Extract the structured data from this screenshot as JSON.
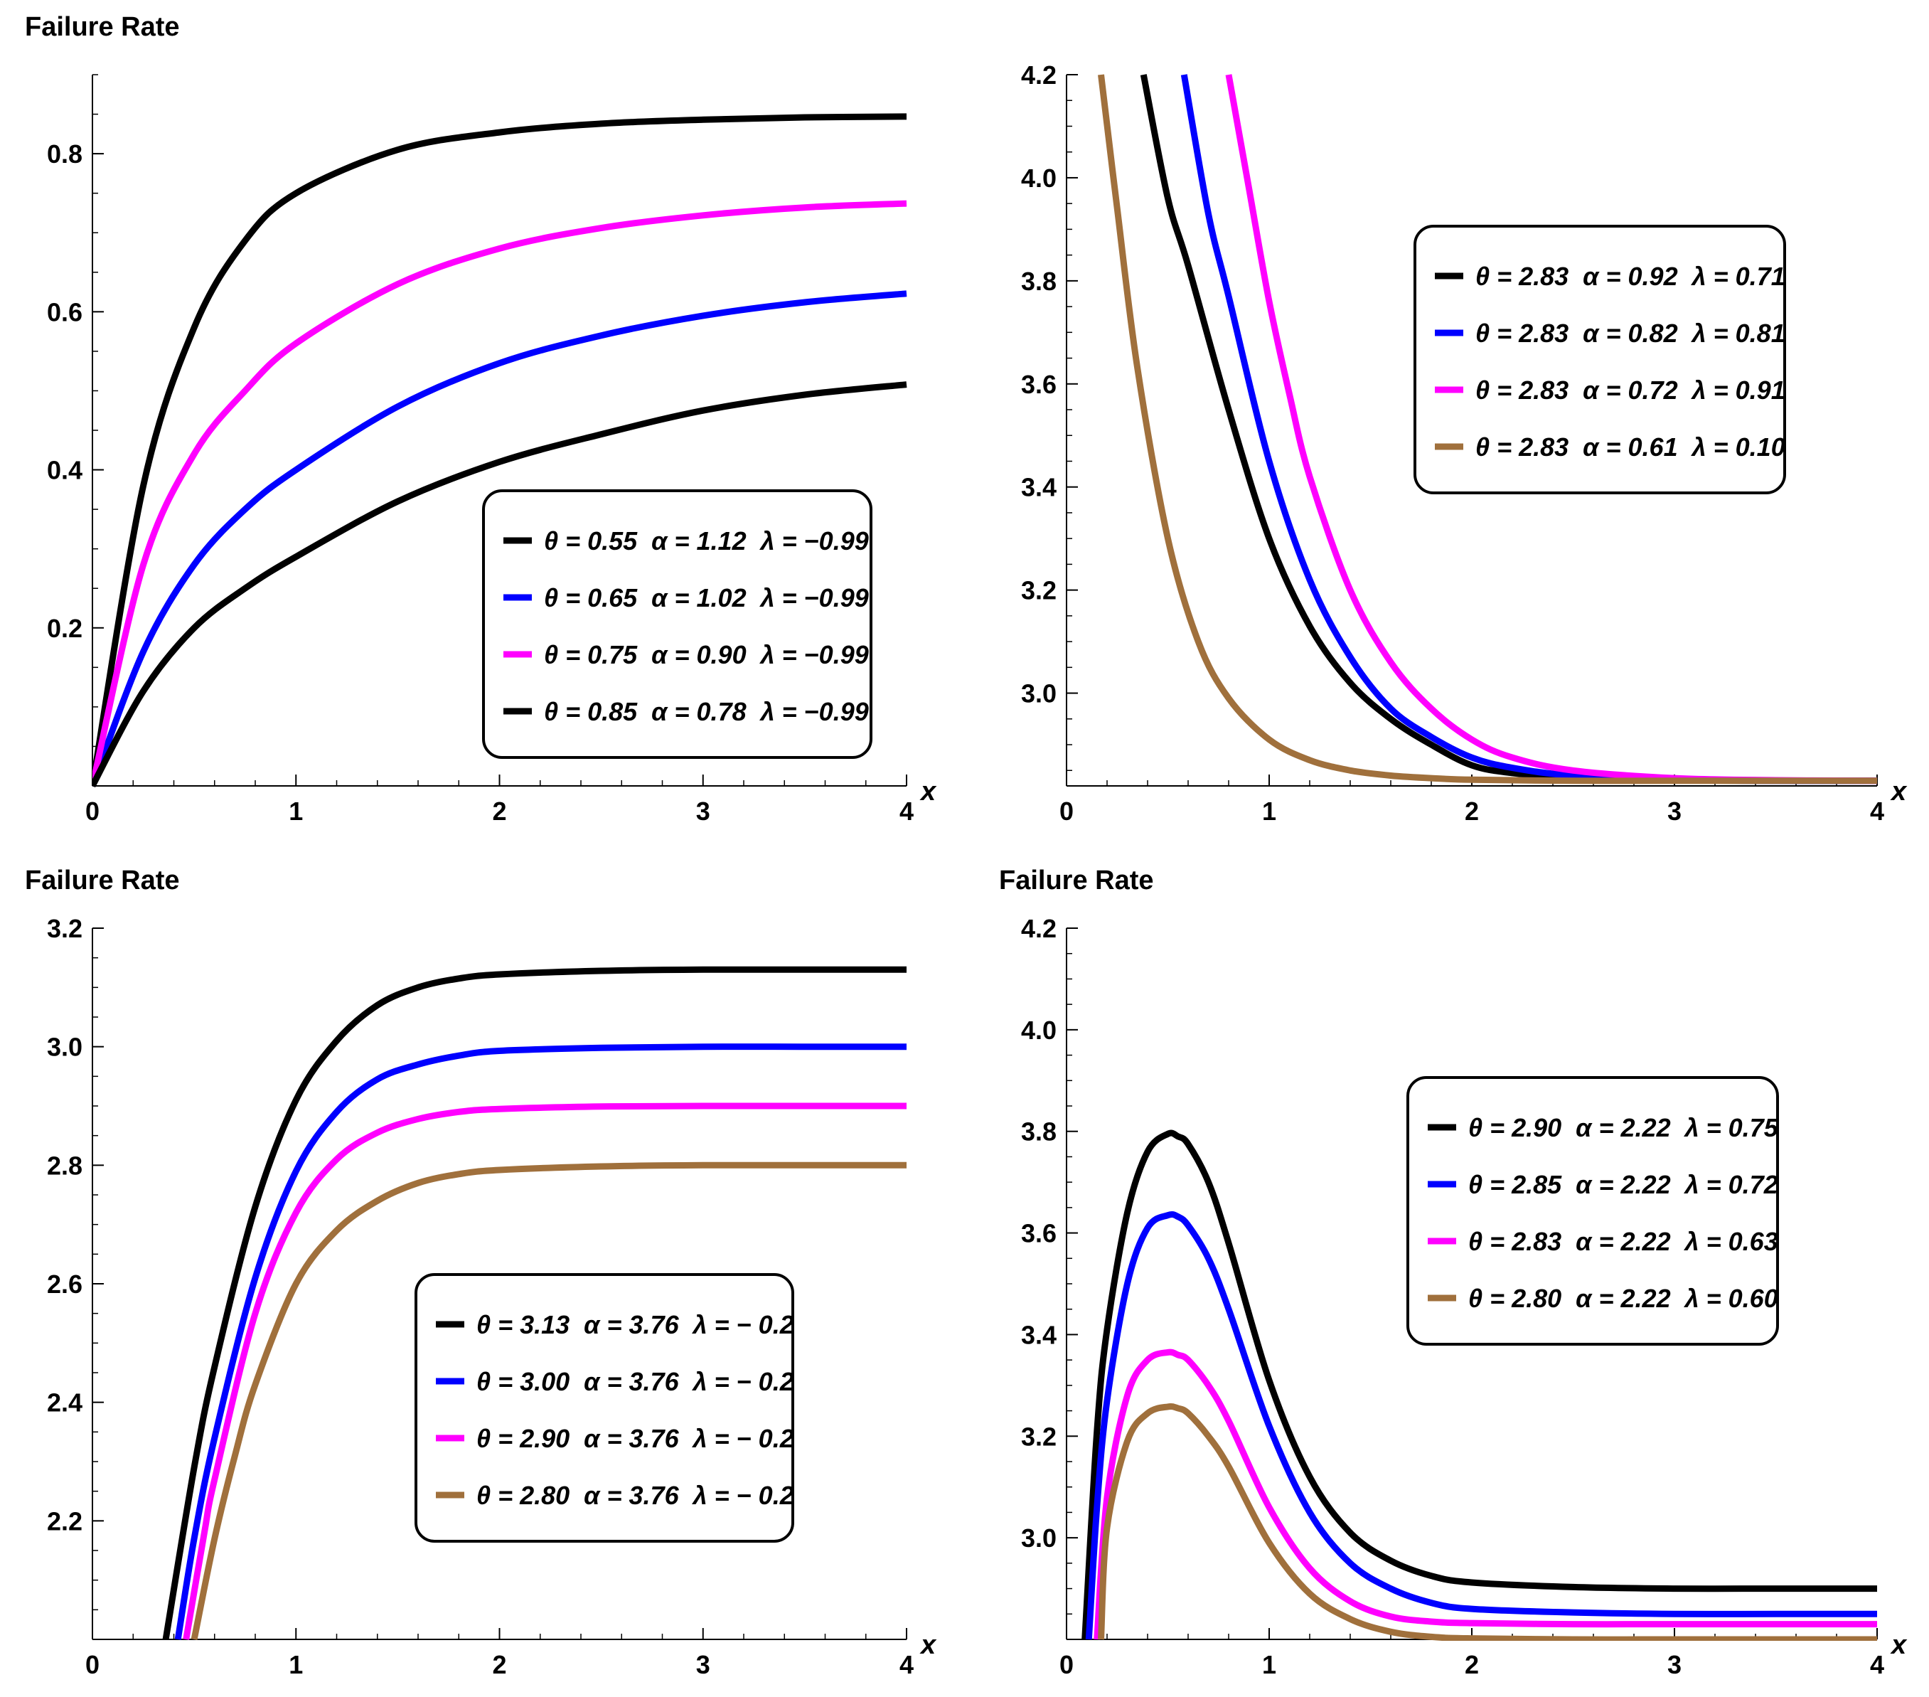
{
  "colors": {
    "black": "#000000",
    "blue": "#0000ff",
    "magenta": "#ff00ff",
    "brown": "#a0703c"
  },
  "chart_data": [
    {
      "type": "line",
      "ylabel": "Failure Rate",
      "xlabel": "x",
      "xlim": [
        0,
        4
      ],
      "ylim": [
        0,
        0.9
      ],
      "xticks": [
        0,
        1,
        2,
        3,
        4
      ],
      "xtick_labels": [
        "0",
        "1",
        "2",
        "3",
        "4"
      ],
      "yticks": [
        0.2,
        0.4,
        0.6,
        0.8
      ],
      "ytick_labels": [
        "0.2",
        "0.4",
        "0.6",
        "0.8"
      ],
      "series": [
        {
          "name": "θ = 0.55  α = 1.12  λ = −0.99",
          "color": "#000000",
          "x": [
            0,
            0.25,
            0.5,
            0.75,
            1,
            1.5,
            2,
            2.5,
            3,
            3.5,
            4
          ],
          "values": [
            0,
            0.38,
            0.58,
            0.69,
            0.75,
            0.805,
            0.827,
            0.838,
            0.843,
            0.846,
            0.847
          ]
        },
        {
          "name": "θ = 0.65  α = 1.02  λ = −0.99",
          "color": "#0000ff",
          "x": [
            0,
            0.25,
            0.5,
            0.75,
            1,
            1.5,
            2,
            2.5,
            3,
            3.5,
            4
          ],
          "values": [
            0,
            0.17,
            0.28,
            0.35,
            0.4,
            0.48,
            0.535,
            0.57,
            0.595,
            0.612,
            0.623
          ]
        },
        {
          "name": "θ = 0.75  α = 0.90  λ = −0.99",
          "color": "#ff00ff",
          "x": [
            0,
            0.25,
            0.5,
            0.75,
            1,
            1.5,
            2,
            2.5,
            3,
            3.5,
            4
          ],
          "values": [
            0,
            0.28,
            0.42,
            0.5,
            0.56,
            0.635,
            0.68,
            0.706,
            0.722,
            0.732,
            0.737
          ]
        },
        {
          "name": "θ = 0.85  α = 0.78  λ = −0.99",
          "color": "#000000",
          "x": [
            0,
            0.25,
            0.5,
            0.75,
            1,
            1.5,
            2,
            2.5,
            3,
            3.5,
            4
          ],
          "values": [
            0,
            0.12,
            0.2,
            0.25,
            0.29,
            0.36,
            0.41,
            0.445,
            0.475,
            0.495,
            0.508
          ]
        }
      ]
    },
    {
      "type": "line",
      "ylabel": "",
      "xlabel": "x",
      "xlim": [
        0,
        4
      ],
      "ylim": [
        2.82,
        4.2
      ],
      "xticks": [
        0,
        1,
        2,
        3,
        4
      ],
      "xtick_labels": [
        "0",
        "1",
        "2",
        "3",
        "4"
      ],
      "yticks": [
        3.0,
        3.2,
        3.4,
        3.6,
        3.8,
        4.0,
        4.2
      ],
      "ytick_labels": [
        "3.0",
        "3.2",
        "3.4",
        "3.6",
        "3.8",
        "4.0",
        "4.2"
      ],
      "series": [
        {
          "name": "θ = 2.83  α = 0.92  λ = 0.71",
          "color": "#000000",
          "x": [
            0.38,
            0.5,
            0.6,
            0.8,
            1,
            1.2,
            1.4,
            1.6,
            1.8,
            2,
            2.2,
            2.5,
            3,
            3.5,
            4
          ],
          "values": [
            4.2,
            3.96,
            3.83,
            3.55,
            3.3,
            3.13,
            3.02,
            2.95,
            2.9,
            2.86,
            2.845,
            2.836,
            2.831,
            2.83,
            2.83
          ]
        },
        {
          "name": "θ = 2.83  α = 0.82  λ = 0.81",
          "color": "#0000ff",
          "x": [
            0.58,
            0.7,
            0.8,
            1,
            1.2,
            1.4,
            1.6,
            1.8,
            2,
            2.2,
            2.5,
            3,
            3.5,
            4
          ],
          "values": [
            4.2,
            3.93,
            3.77,
            3.45,
            3.22,
            3.07,
            2.97,
            2.915,
            2.875,
            2.855,
            2.84,
            2.832,
            2.83,
            2.83
          ]
        },
        {
          "name": "θ = 2.83  α = 0.72  λ = 0.91",
          "color": "#ff00ff",
          "x": [
            0.8,
            0.9,
            1,
            1.1,
            1.2,
            1.4,
            1.6,
            1.8,
            2,
            2.2,
            2.5,
            3,
            3.5,
            4
          ],
          "values": [
            4.2,
            3.98,
            3.76,
            3.58,
            3.42,
            3.2,
            3.06,
            2.97,
            2.91,
            2.875,
            2.85,
            2.835,
            2.831,
            2.83
          ]
        },
        {
          "name": "θ = 2.83  α = 0.61  λ = 0.10",
          "color": "#a0703c",
          "x": [
            0.17,
            0.25,
            0.35,
            0.5,
            0.65,
            0.8,
            1,
            1.2,
            1.4,
            1.6,
            1.8,
            2,
            2.5,
            3,
            4
          ],
          "values": [
            4.2,
            3.94,
            3.63,
            3.3,
            3.1,
            2.99,
            2.91,
            2.87,
            2.85,
            2.84,
            2.835,
            2.832,
            2.83,
            2.83,
            2.83
          ]
        }
      ]
    },
    {
      "type": "line",
      "ylabel": "Failure Rate",
      "xlabel": "x",
      "xlim": [
        0,
        4
      ],
      "ylim": [
        2.0,
        3.2
      ],
      "xticks": [
        0,
        1,
        2,
        3,
        4
      ],
      "xtick_labels": [
        "0",
        "1",
        "2",
        "3",
        "4"
      ],
      "yticks": [
        2.2,
        2.4,
        2.6,
        2.8,
        3.0,
        3.2
      ],
      "ytick_labels": [
        "2.2",
        "2.4",
        "2.6",
        "2.8",
        "3.0",
        "3.2"
      ],
      "series": [
        {
          "name": "θ = 3.13  α = 3.76  λ = − 0.2",
          "color": "#000000",
          "x": [
            0.36,
            0.5,
            0.6,
            0.8,
            1,
            1.2,
            1.4,
            1.6,
            1.8,
            2,
            2.5,
            3,
            3.5,
            4
          ],
          "values": [
            2.0,
            2.29,
            2.46,
            2.73,
            2.91,
            3.01,
            3.07,
            3.1,
            3.115,
            3.122,
            3.128,
            3.13,
            3.13,
            3.13
          ]
        },
        {
          "name": "θ = 3.00  α = 3.76  λ = − 0.2",
          "color": "#0000ff",
          "x": [
            0.42,
            0.5,
            0.6,
            0.8,
            1,
            1.2,
            1.4,
            1.6,
            1.8,
            2,
            2.5,
            3,
            3.5,
            4
          ],
          "values": [
            2.0,
            2.17,
            2.34,
            2.61,
            2.79,
            2.89,
            2.945,
            2.97,
            2.985,
            2.993,
            2.998,
            3.0,
            3.0,
            3.0
          ]
        },
        {
          "name": "θ = 2.90  α = 3.76  λ = − 0.2",
          "color": "#ff00ff",
          "x": [
            0.46,
            0.55,
            0.6,
            0.8,
            1,
            1.2,
            1.4,
            1.6,
            1.8,
            2,
            2.5,
            3,
            3.5,
            4
          ],
          "values": [
            2.0,
            2.18,
            2.27,
            2.55,
            2.72,
            2.81,
            2.855,
            2.878,
            2.89,
            2.895,
            2.899,
            2.9,
            2.9,
            2.9
          ]
        },
        {
          "name": "θ = 2.80  α = 3.76  λ = − 0.2",
          "color": "#a0703c",
          "x": [
            0.5,
            0.6,
            0.7,
            0.8,
            1,
            1.2,
            1.4,
            1.6,
            1.8,
            2,
            2.5,
            3,
            3.5,
            4
          ],
          "values": [
            2.0,
            2.17,
            2.31,
            2.43,
            2.6,
            2.69,
            2.74,
            2.77,
            2.785,
            2.792,
            2.798,
            2.8,
            2.8,
            2.8
          ]
        }
      ]
    },
    {
      "type": "line",
      "ylabel": "Failure Rate",
      "xlabel": "x",
      "xlim": [
        0,
        4
      ],
      "ylim": [
        2.8,
        4.2
      ],
      "xticks": [
        0,
        1,
        2,
        3,
        4
      ],
      "xtick_labels": [
        "0",
        "1",
        "2",
        "3",
        "4"
      ],
      "yticks": [
        3.0,
        3.2,
        3.4,
        3.6,
        3.8,
        4.0,
        4.2
      ],
      "ytick_labels": [
        "3.0",
        "3.2",
        "3.4",
        "3.6",
        "3.8",
        "4.0",
        "4.2"
      ],
      "series": [
        {
          "name": "θ = 2.90  α = 2.22  λ = 0.75",
          "color": "#000000",
          "x": [
            0.09,
            0.15,
            0.2,
            0.3,
            0.4,
            0.5,
            0.55,
            0.6,
            0.7,
            0.8,
            1,
            1.2,
            1.4,
            1.6,
            1.8,
            2,
            2.5,
            3,
            3.5,
            4
          ],
          "values": [
            2.8,
            3.21,
            3.41,
            3.64,
            3.76,
            3.795,
            3.79,
            3.775,
            3.7,
            3.58,
            3.31,
            3.12,
            3.01,
            2.955,
            2.925,
            2.912,
            2.903,
            2.9,
            2.9,
            2.9
          ]
        },
        {
          "name": "θ = 2.85  α = 2.22  λ = 0.72",
          "color": "#0000ff",
          "x": [
            0.11,
            0.15,
            0.2,
            0.3,
            0.4,
            0.5,
            0.55,
            0.6,
            0.7,
            0.8,
            1,
            1.2,
            1.4,
            1.6,
            1.8,
            2,
            2.5,
            3,
            3.5,
            4
          ],
          "values": [
            2.8,
            3.06,
            3.27,
            3.5,
            3.61,
            3.635,
            3.632,
            3.615,
            3.55,
            3.45,
            3.22,
            3.05,
            2.95,
            2.9,
            2.872,
            2.86,
            2.853,
            2.85,
            2.85,
            2.85
          ]
        },
        {
          "name": "θ = 2.83  α = 2.22  λ = 0.63",
          "color": "#ff00ff",
          "x": [
            0.15,
            0.2,
            0.3,
            0.4,
            0.5,
            0.55,
            0.6,
            0.7,
            0.8,
            1,
            1.2,
            1.4,
            1.6,
            1.8,
            2,
            2.5,
            3,
            3.5,
            4
          ],
          "values": [
            2.8,
            3.08,
            3.28,
            3.35,
            3.365,
            3.36,
            3.35,
            3.3,
            3.23,
            3.06,
            2.94,
            2.875,
            2.845,
            2.835,
            2.832,
            2.83,
            2.83,
            2.83,
            2.83
          ]
        },
        {
          "name": "θ = 2.80  α = 2.22  λ = 0.60",
          "color": "#a0703c",
          "x": [
            0.17,
            0.2,
            0.3,
            0.4,
            0.5,
            0.55,
            0.6,
            0.7,
            0.8,
            1,
            1.2,
            1.4,
            1.6,
            1.8,
            2,
            2.5,
            3,
            3.5,
            4
          ],
          "values": [
            2.8,
            3.02,
            3.19,
            3.245,
            3.258,
            3.255,
            3.245,
            3.2,
            3.14,
            2.99,
            2.89,
            2.84,
            2.815,
            2.805,
            2.802,
            2.8,
            2.8,
            2.8,
            2.8
          ]
        }
      ]
    }
  ]
}
